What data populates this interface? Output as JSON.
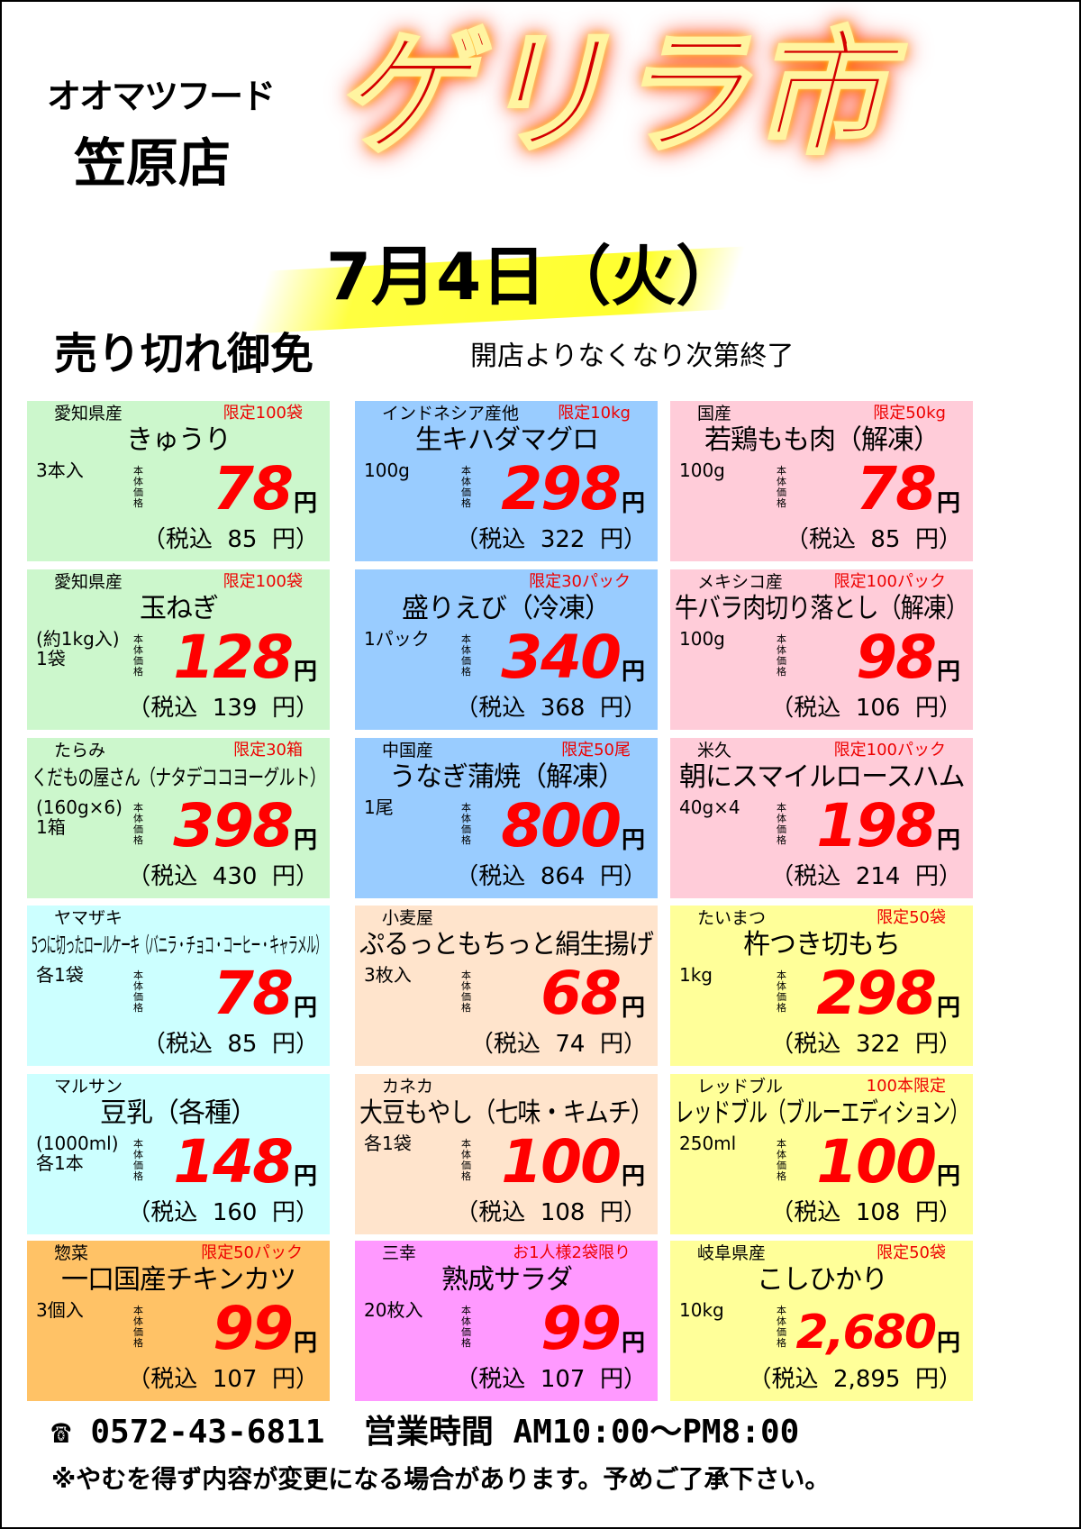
{
  "header": {
    "store_name": "オオマツフード",
    "branch": "笠原店",
    "title": "ゲリラ市",
    "date": "7月4日（火）",
    "sold_out": "売り切れ御免",
    "notice": "開店よりなくなり次第終了"
  },
  "price_label": "本体価格",
  "yen": "円",
  "tax_prefix": "（税込",
  "tax_suffix": "円）",
  "items": [
    {
      "origin": "愛知県産",
      "limit": "限定100袋",
      "name": "きゅうり",
      "qty": "3本入",
      "price": "78",
      "tax": "85",
      "bg": "#ccf7cc"
    },
    {
      "origin": "インドネシア産他",
      "limit": "限定10kg",
      "name": "生キハダマグロ",
      "qty": "100g",
      "price": "298",
      "tax": "322",
      "bg": "#99ccff"
    },
    {
      "origin": "国産",
      "limit": "限定50kg",
      "name": "若鶏もも肉（解凍）",
      "qty": "100g",
      "price": "78",
      "tax": "85",
      "bg": "#ffccd9"
    },
    {
      "origin": "愛知県産",
      "limit": "限定100袋",
      "name": "玉ねぎ",
      "qty": "(約1kg入)1袋",
      "price": "128",
      "tax": "139",
      "bg": "#ccf7cc"
    },
    {
      "origin": "",
      "limit": "限定30パック",
      "name": "盛りえび（冷凍）",
      "qty": "1パック",
      "price": "340",
      "tax": "368",
      "bg": "#99ccff"
    },
    {
      "origin": "メキシコ産",
      "limit": "限定100パック",
      "name": "牛バラ肉切り落とし（解凍）",
      "qty": "100g",
      "price": "98",
      "tax": "106",
      "bg": "#ffccd9"
    },
    {
      "origin": "たらみ",
      "limit": "限定30箱",
      "name": "くだもの屋さん（ナタデココヨーグルト）",
      "qty": "(160g×6)1箱",
      "price": "398",
      "tax": "430",
      "bg": "#ccf7cc"
    },
    {
      "origin": "中国産",
      "limit": "限定50尾",
      "name": "うなぎ蒲焼（解凍）",
      "qty": "1尾",
      "price": "800",
      "tax": "864",
      "bg": "#99ccff"
    },
    {
      "origin": "米久",
      "limit": "限定100パック",
      "name": "朝にスマイルロースハム",
      "qty": "40g×4",
      "price": "198",
      "tax": "214",
      "bg": "#ffccd9"
    },
    {
      "origin": "ヤマザキ",
      "limit": "",
      "name": "5つに切ったロールケーキ（バニラ・チョコ・コーヒー・キャラメル）",
      "qty": "各1袋",
      "price": "78",
      "tax": "85",
      "bg": "#ccffff"
    },
    {
      "origin": "小麦屋",
      "limit": "",
      "name": "ぷるっともちっと絹生揚げ",
      "qty": "3枚入",
      "price": "68",
      "tax": "74",
      "bg": "#ffe4cc"
    },
    {
      "origin": "たいまつ",
      "limit": "限定50袋",
      "name": "杵つき切もち",
      "qty": "1kg",
      "price": "298",
      "tax": "322",
      "bg": "#ffff99"
    },
    {
      "origin": "マルサン",
      "limit": "",
      "name": "豆乳（各種）",
      "qty": "(1000ml)各1本",
      "price": "148",
      "tax": "160",
      "bg": "#ccffff"
    },
    {
      "origin": "カネカ",
      "limit": "",
      "name": "大豆もやし（七味・キムチ）",
      "qty": "各1袋",
      "price": "100",
      "tax": "108",
      "bg": "#ffe4cc"
    },
    {
      "origin": "レッドブル",
      "limit": "100本限定",
      "name": "レッドブル（ブルーエディション）",
      "qty": "250ml",
      "price": "100",
      "tax": "108",
      "bg": "#ffff99"
    },
    {
      "origin": "惣菜",
      "limit": "限定50パック",
      "name": "一口国産チキンカツ",
      "qty": "3個入",
      "price": "99",
      "tax": "107",
      "bg": "#ffc266"
    },
    {
      "origin": "三幸",
      "limit": "お1人様2袋限り",
      "name": "熟成サラダ",
      "qty": "20枚入",
      "price": "99",
      "tax": "107",
      "bg": "#ff99ff"
    },
    {
      "origin": "岐阜県産",
      "limit": "限定50袋",
      "name": "こしひかり",
      "qty": "10kg",
      "price": "2,680",
      "tax": "2,895",
      "bg": "#ffff99"
    }
  ],
  "footer": {
    "phone_icon": "telephone-icon",
    "phone": "0572-43-6811",
    "hours_label": "営業時間",
    "hours": "AM10:00～PM8:00",
    "disclaimer": "※やむを得ず内容が変更になる場合があります。予めご了承下さい。"
  }
}
